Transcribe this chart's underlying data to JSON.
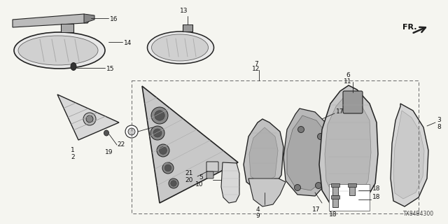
{
  "bg_color": "#f5f5f0",
  "line_color": "#222222",
  "part_number": "TX84B4300",
  "fig_w": 6.4,
  "fig_h": 3.2,
  "dpi": 100
}
